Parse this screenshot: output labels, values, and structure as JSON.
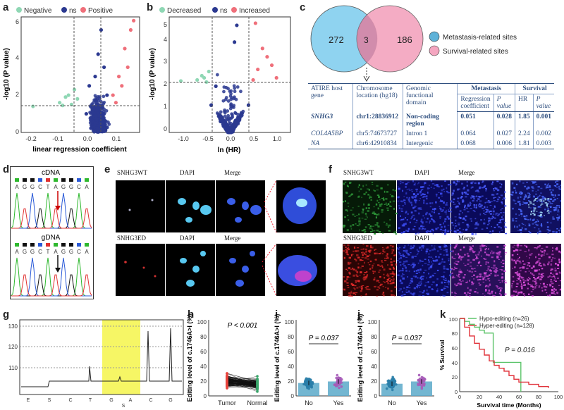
{
  "panels": {
    "a": "a",
    "b": "b",
    "c": "c",
    "d": "d",
    "e": "e",
    "f": "f",
    "g": "g",
    "h": "h",
    "i": "i",
    "j": "j",
    "k": "k"
  },
  "panel_a": {
    "legend": [
      "Negative",
      "ns",
      "Positive"
    ],
    "ylabel": "-log10 (P value)",
    "xlabel": "linear regression coefficient",
    "xticks": [
      "-0.2",
      "-0.1",
      "0.0",
      "0.1"
    ],
    "yticks": [
      "0",
      "2",
      "4",
      "6"
    ]
  },
  "panel_b": {
    "legend": [
      "Decreased",
      "ns",
      "Increased"
    ],
    "ylabel": "-log10 (P value)",
    "xlabel": "ln (HR)",
    "xticks": [
      "-1.0",
      "-0.5",
      "0.0",
      "0.5",
      "1.0"
    ],
    "yticks": [
      "0",
      "1",
      "2",
      "3",
      "4",
      "5"
    ]
  },
  "panel_c": {
    "venn_left": "272",
    "venn_mid": "3",
    "venn_right": "186",
    "legend_metastasis": "Metastasis-related sites",
    "legend_survival": "Survival-related sites",
    "table": {
      "h_gene": "ATIRE host gene",
      "h_location": "Chromosome location (hg18)",
      "h_domain": "Genomic functional domain",
      "h_metastasis": "Metastasis",
      "h_survival": "Survival",
      "h_regcoef": "Regression coefficient",
      "h_pvalue": "P value",
      "h_hr": "HR",
      "h_p": "P value",
      "rows": [
        {
          "gene": "SNHG3",
          "loc": "chr1:28836912",
          "domain": "Non-coding region",
          "coef": "0.051",
          "p1": "0.028",
          "hr": "1.85",
          "p2": "0.001"
        },
        {
          "gene": "COL4A5BP",
          "loc": "chr5:74673727",
          "domain": "Intron 1",
          "coef": "0.064",
          "p1": "0.027",
          "hr": "2.24",
          "p2": "0.002"
        },
        {
          "gene": "NA",
          "loc": "chr6:42910834",
          "domain": "Intergenic",
          "coef": "0.068",
          "p1": "0.006",
          "hr": "1.81",
          "p2": "0.003"
        }
      ]
    }
  },
  "panel_d": {
    "cdna": "cDNA",
    "gdna": "gDNA",
    "seq_top": [
      "A",
      "G",
      "G",
      "C",
      "T",
      "A",
      "G",
      "G",
      "C",
      "A"
    ],
    "seq_bottom": [
      "A",
      "G",
      "G",
      "C",
      "T",
      "A",
      "G",
      "G",
      "C",
      "A"
    ]
  },
  "panel_e": {
    "wt": "SNHG3WT",
    "ed": "SNHG3ED",
    "dapi": "DAPI",
    "merge": "Merge"
  },
  "panel_f": {
    "wt": "SNHG3WT",
    "ed": "SNHG3ED",
    "dapi": "DAPI",
    "merge": "Merge"
  },
  "panel_g": {
    "yticks": [
      "130",
      "120",
      "110"
    ],
    "bases": [
      "E",
      "S",
      "C",
      "T",
      "G",
      "A",
      "C",
      "G"
    ],
    "sub": "S"
  },
  "panel_h": {
    "ylabel": "Editing level of c.1746A>I (%)",
    "pval": "P < 0.001",
    "xlabels": [
      "Tumor",
      "Normal"
    ],
    "yticks": [
      "0",
      "20",
      "40",
      "60",
      "80",
      "100"
    ]
  },
  "panel_i": {
    "ylabel": "Editing level of c.1746A>I (%)",
    "pval": "P = 0.037",
    "xlabels": [
      "No",
      "Yes"
    ],
    "yticks": [
      "0",
      "20",
      "40",
      "60",
      "80",
      "100"
    ]
  },
  "panel_j": {
    "ylabel": "Editing level of c.1746A>I (%)",
    "pval": "P = 0.037",
    "xlabels": [
      "No",
      "Yes"
    ],
    "yticks": [
      "0",
      "20",
      "40",
      "60",
      "80",
      "100"
    ]
  },
  "panel_k": {
    "legend_hypo": "Hypo-editing (n=26)",
    "legend_hyper": "Hyper-editing (n=128)",
    "pval": "P = 0.016",
    "ylabel": "% Survival",
    "xlabel": "Survival time (Months)",
    "xticks": [
      "0",
      "20",
      "40",
      "60",
      "80",
      "100"
    ],
    "yticks": [
      "0",
      "20",
      "40",
      "60",
      "80",
      "100"
    ]
  },
  "colors": {
    "negative": "#8fd7b4",
    "ns": "#2b3990",
    "positive": "#ef6f7a",
    "venn_left": "#8fd3f0",
    "venn_right": "#f4a6c0",
    "tumor": "#e8423b",
    "normal": "#3aa66b",
    "bar": "#5aa9c9",
    "dots": "#a65bb8",
    "hypo": "#5cc46a",
    "hyper": "#e0323a",
    "highlight": "#f4f44a"
  },
  "chart_data": [
    {
      "type": "scatter",
      "title": "",
      "xlabel": "linear regression coefficient",
      "ylabel": "-log10 (P value)",
      "xlim": [
        -0.25,
        0.15
      ],
      "ylim": [
        0,
        6.2
      ],
      "thresholds": {
        "x": [
          -0.05,
          0.05
        ],
        "y": 1.3
      },
      "series": [
        {
          "name": "Negative",
          "points": [
            [
              -0.21,
              1.4
            ],
            [
              -0.12,
              1.6
            ],
            [
              -0.09,
              2.0
            ],
            [
              -0.08,
              1.5
            ],
            [
              -0.07,
              2.3
            ],
            [
              -0.06,
              1.8
            ],
            [
              -0.1,
              1.9
            ],
            [
              -0.11,
              1.45
            ]
          ]
        },
        {
          "name": "ns",
          "points": [
            [
              -0.03,
              1.0
            ],
            [
              0.0,
              3.0
            ],
            [
              0.01,
              4.2
            ],
            [
              0.02,
              5.5
            ],
            [
              0.03,
              3.5
            ],
            [
              -0.02,
              2.5
            ],
            [
              0.04,
              2.0
            ],
            [
              0.0,
              0.5
            ]
          ]
        },
        {
          "name": "Positive",
          "points": [
            [
              0.06,
              2.0
            ],
            [
              0.08,
              3.0
            ],
            [
              0.1,
              4.5
            ],
            [
              0.12,
              5.5
            ],
            [
              0.07,
              1.6
            ],
            [
              0.09,
              2.5
            ],
            [
              0.13,
              6.0
            ],
            [
              0.11,
              3.5
            ]
          ]
        }
      ]
    },
    {
      "type": "scatter",
      "title": "",
      "xlabel": "ln (HR)",
      "ylabel": "-log10 (P value)",
      "xlim": [
        -1.3,
        1.3
      ],
      "ylim": [
        0,
        5.5
      ],
      "thresholds": {
        "x": [
          -0.4,
          0.4
        ],
        "y": 2.3
      },
      "series": [
        {
          "name": "Decreased",
          "points": [
            [
              -0.5,
              2.4
            ],
            [
              -0.6,
              2.7
            ],
            [
              -0.45,
              2.9
            ],
            [
              -0.7,
              2.5
            ],
            [
              -1.05,
              2.45
            ],
            [
              -0.55,
              2.6
            ]
          ]
        },
        {
          "name": "ns",
          "points": [
            [
              0,
              0.05
            ],
            [
              -0.2,
              0.6
            ],
            [
              0.2,
              0.6
            ],
            [
              -0.4,
              1.3
            ],
            [
              0.4,
              1.3
            ],
            [
              0.1,
              4.3
            ],
            [
              0.15,
              5.1
            ],
            [
              -0.3,
              2.2
            ]
          ]
        },
        {
          "name": "Increased",
          "points": [
            [
              0.5,
              2.5
            ],
            [
              0.6,
              3.0
            ],
            [
              0.8,
              3.6
            ],
            [
              0.9,
              3.2
            ],
            [
              0.7,
              4.0
            ],
            [
              0.55,
              5.2
            ],
            [
              1.0,
              2.6
            ]
          ]
        }
      ]
    },
    {
      "type": "bar",
      "title": "",
      "categories": [
        "No",
        "Yes"
      ],
      "values": [
        17,
        19
      ],
      "ylabel": "Editing level of c.1746A>I (%)",
      "ylim": [
        0,
        100
      ]
    },
    {
      "type": "bar",
      "title": "",
      "categories": [
        "No",
        "Yes"
      ],
      "values": [
        16,
        19
      ],
      "ylabel": "Editing level of c.1746A>I (%)",
      "ylim": [
        0,
        100
      ]
    },
    {
      "type": "line",
      "title": "",
      "xlabel": "Survival time (Months)",
      "ylabel": "% Survival",
      "xlim": [
        0,
        100
      ],
      "ylim": [
        0,
        100
      ],
      "series": [
        {
          "name": "Hypo-editing (n=26)",
          "x": [
            0,
            5,
            10,
            15,
            20,
            25,
            33,
            34,
            60,
            62
          ],
          "y": [
            100,
            96,
            92,
            88,
            84,
            80,
            80,
            40,
            40,
            0
          ]
        },
        {
          "name": "Hyper-editing (n=128)",
          "x": [
            0,
            5,
            10,
            15,
            20,
            25,
            30,
            35,
            40,
            45,
            50,
            55,
            60,
            70,
            80,
            90
          ],
          "y": [
            100,
            88,
            76,
            66,
            58,
            50,
            42,
            36,
            32,
            28,
            22,
            17,
            13,
            10,
            7,
            5
          ]
        }
      ]
    }
  ]
}
